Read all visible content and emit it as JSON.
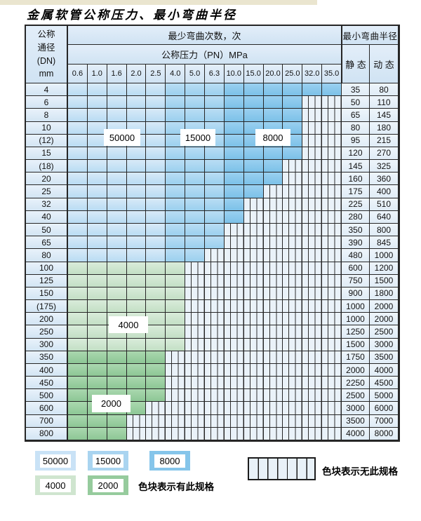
{
  "title": "金属软管公称压力、最小弯曲半径",
  "table": {
    "header": {
      "dn_lines": [
        "公称",
        "通径",
        "(DN)",
        "mm"
      ],
      "bend_cycles": "最少弯曲次数，次",
      "pressure": "公称压力（PN）MPa",
      "min_bend_radius": "最小弯曲半径",
      "static_label": "静 态",
      "dynamic_label": "动 态",
      "pn_columns": [
        "0.6",
        "1.0",
        "1.6",
        "2.0",
        "2.5",
        "4.0",
        "5.0",
        "6.3",
        "10.0",
        "15.0",
        "20.0",
        "25.0",
        "32.0",
        "35.0"
      ]
    },
    "blue_zones": {
      "light_last_col": 4,
      "mid_last_col": 7,
      "light_value": "50000",
      "mid_value": "15000",
      "dark_value": "8000",
      "green_light_value": "4000",
      "green_dark_value": "2000"
    },
    "rows": [
      {
        "dn": "4",
        "palette": "blue",
        "colored_until": 13,
        "static": "35",
        "dynamic": "80"
      },
      {
        "dn": "6",
        "palette": "blue",
        "colored_until": 11,
        "static": "50",
        "dynamic": "110"
      },
      {
        "dn": "8",
        "palette": "blue",
        "colored_until": 11,
        "static": "65",
        "dynamic": "145"
      },
      {
        "dn": "10",
        "palette": "blue",
        "colored_until": 11,
        "static": "80",
        "dynamic": "180"
      },
      {
        "dn": "(12)",
        "palette": "blue",
        "colored_until": 11,
        "static": "95",
        "dynamic": "215"
      },
      {
        "dn": "15",
        "palette": "blue",
        "colored_until": 11,
        "static": "120",
        "dynamic": "270"
      },
      {
        "dn": "(18)",
        "palette": "blue",
        "colored_until": 10,
        "static": "145",
        "dynamic": "325"
      },
      {
        "dn": "20",
        "palette": "blue",
        "colored_until": 10,
        "static": "160",
        "dynamic": "360"
      },
      {
        "dn": "25",
        "palette": "blue",
        "colored_until": 9,
        "static": "175",
        "dynamic": "400"
      },
      {
        "dn": "32",
        "palette": "blue",
        "colored_until": 8,
        "static": "225",
        "dynamic": "510"
      },
      {
        "dn": "40",
        "palette": "blue",
        "colored_until": 8,
        "static": "280",
        "dynamic": "640"
      },
      {
        "dn": "50",
        "palette": "blue",
        "colored_until": 7,
        "static": "350",
        "dynamic": "800"
      },
      {
        "dn": "65",
        "palette": "blue",
        "colored_until": 7,
        "static": "390",
        "dynamic": "845"
      },
      {
        "dn": "80",
        "palette": "blue",
        "colored_until": 6,
        "static": "480",
        "dynamic": "1000"
      },
      {
        "dn": "100",
        "palette": "green-light",
        "colored_until": 5,
        "static": "600",
        "dynamic": "1200"
      },
      {
        "dn": "125",
        "palette": "green-light",
        "colored_until": 5,
        "static": "750",
        "dynamic": "1500"
      },
      {
        "dn": "150",
        "palette": "green-light",
        "colored_until": 5,
        "static": "900",
        "dynamic": "1800"
      },
      {
        "dn": "(175)",
        "palette": "green-light",
        "colored_until": 5,
        "static": "1000",
        "dynamic": "2000"
      },
      {
        "dn": "200",
        "palette": "green-light",
        "colored_until": 5,
        "static": "1000",
        "dynamic": "2000"
      },
      {
        "dn": "250",
        "palette": "green-light",
        "colored_until": 5,
        "static": "1250",
        "dynamic": "2500"
      },
      {
        "dn": "300",
        "palette": "green-light",
        "colored_until": 5,
        "static": "1500",
        "dynamic": "3000"
      },
      {
        "dn": "350",
        "palette": "green-dark",
        "colored_until": 4,
        "static": "1750",
        "dynamic": "3500"
      },
      {
        "dn": "400",
        "palette": "green-dark",
        "colored_until": 4,
        "static": "2000",
        "dynamic": "4000"
      },
      {
        "dn": "450",
        "palette": "green-dark",
        "colored_until": 4,
        "static": "2250",
        "dynamic": "4500"
      },
      {
        "dn": "500",
        "palette": "green-dark",
        "colored_until": 4,
        "static": "2500",
        "dynamic": "5000"
      },
      {
        "dn": "600",
        "palette": "green-dark",
        "colored_until": 3,
        "static": "3000",
        "dynamic": "6000"
      },
      {
        "dn": "700",
        "palette": "green-dark",
        "colored_until": 2,
        "static": "3500",
        "dynamic": "7000"
      },
      {
        "dn": "800",
        "palette": "green-dark",
        "colored_until": 2,
        "static": "4000",
        "dynamic": "8000"
      }
    ]
  },
  "overlays": {
    "o50000": "50000",
    "o15000": "15000",
    "o8000": "8000",
    "o4000": "4000",
    "o2000": "2000"
  },
  "legend": {
    "items": {
      "blue_light": "50000",
      "blue_mid": "15000",
      "blue_dark": "8000",
      "green_light": "4000",
      "green_dark": "2000"
    },
    "has_spec": "色块表示有此规格",
    "no_spec": "色块表示无此规格"
  },
  "colors": {
    "blue_light": "#c9e2f6",
    "blue_mid": "#a9d4f0",
    "blue_dark": "#85c5ea",
    "green_light": "#cfe5cf",
    "green_dark": "#96cb9d",
    "hatch_background": "#eaf2f9",
    "grid_line": "#262626",
    "header_background": "#d9e9f6",
    "top_strip": "#eae5cf"
  }
}
